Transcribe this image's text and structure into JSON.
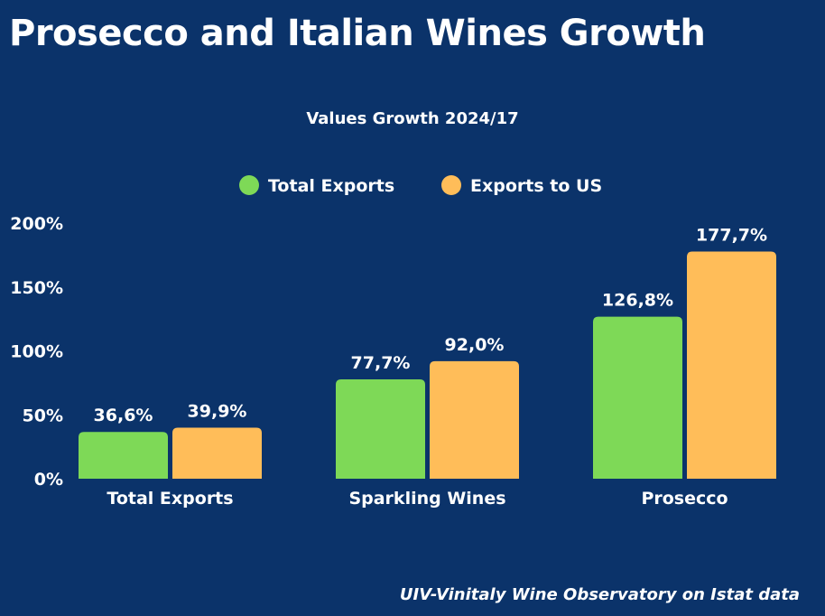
{
  "title": "Prosecco and Italian Wines Growth",
  "source": "UIV-Vinitaly Wine Observatory on Istat data",
  "chart_data": {
    "type": "bar",
    "title": "Values Growth 2024/17",
    "xlabel": "",
    "ylabel": "",
    "categories": [
      "Total Exports",
      "Sparkling Wines",
      "Prosecco"
    ],
    "series": [
      {
        "name": "Total Exports",
        "color": "#7ed957",
        "values": [
          36.6,
          77.7,
          126.8
        ],
        "labels": [
          "36,6%",
          "77,7%",
          "126,8%"
        ]
      },
      {
        "name": "Exports to US",
        "color": "#ffbd59",
        "values": [
          39.9,
          92.0,
          177.7
        ],
        "labels": [
          "39,9%",
          "92,0%",
          "177,7%"
        ]
      }
    ],
    "ylim": [
      0,
      200
    ],
    "yticks": [
      0,
      50,
      100,
      150,
      200
    ],
    "ytick_labels": [
      "0%",
      "50%",
      "100%",
      "150%",
      "200%"
    ],
    "grid": false,
    "legend": "top-center"
  }
}
